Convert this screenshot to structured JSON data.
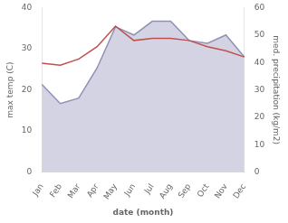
{
  "chart_data": {
    "type": "line",
    "xlabel": "date (month)",
    "ylabel": "max temp (C)",
    "y2label": "med. precipitation (kg/m2)",
    "categories": [
      "Jan",
      "Feb",
      "Mar",
      "Apr",
      "May",
      "Jun",
      "Jul",
      "Aug",
      "Sep",
      "Oct",
      "Nov",
      "Dec"
    ],
    "series": [
      {
        "type": "area",
        "axis": "y2",
        "color": "#9090b8",
        "values": [
          32,
          25,
          27,
          38,
          53,
          50,
          55,
          55,
          48,
          47,
          50,
          42
        ]
      },
      {
        "type": "line",
        "color": "#c0504d",
        "values": [
          26.5,
          26.0,
          27.5,
          30.5,
          35.5,
          32.0,
          32.5,
          32.5,
          32.0,
          30.5,
          29.5,
          28.0
        ]
      }
    ],
    "ylim": [
      0,
      40
    ],
    "yticks": [
      0,
      10,
      20,
      30,
      40
    ],
    "y2lim": [
      0,
      60
    ],
    "y2ticks": [
      0,
      10,
      20,
      30,
      40,
      50,
      60
    ],
    "grid": false
  }
}
